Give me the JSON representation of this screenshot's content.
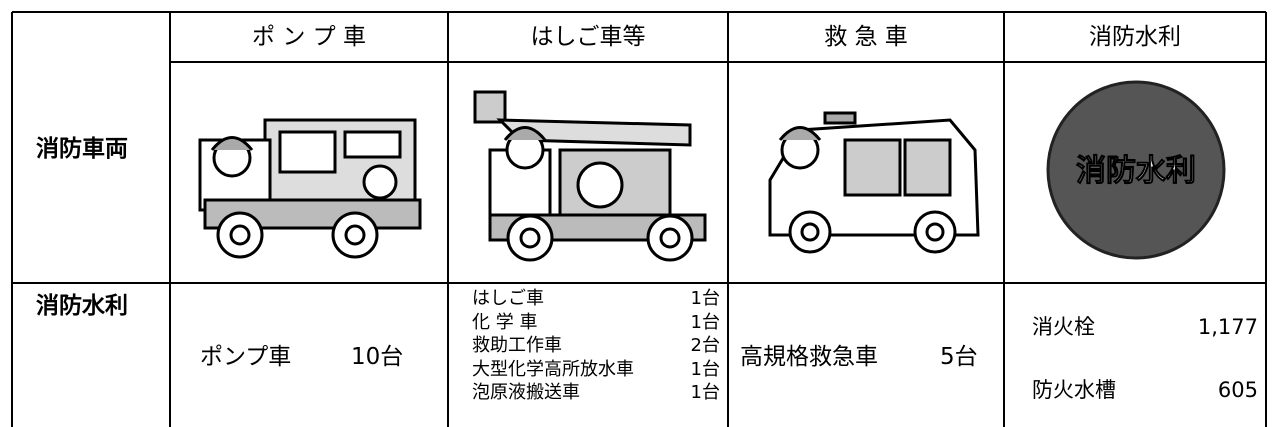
{
  "table": {
    "header": [
      "ポ ン プ 車",
      "はしご車等",
      "救 急 車",
      "消防水利"
    ],
    "row_labels": [
      "消防車両",
      "消防水利"
    ],
    "hydrant_badge": "消防水利",
    "pump": {
      "name": "ポンプ車",
      "count": "10台"
    },
    "ladder": [
      {
        "name": "はしご車",
        "count": "1台"
      },
      {
        "name": "化 学 車",
        "count": "1台"
      },
      {
        "name": "救助工作車",
        "count": "2台"
      },
      {
        "name": "大型化学高所放水車",
        "count": "1台"
      },
      {
        "name": "泡原液搬送車",
        "count": "1台"
      }
    ],
    "ambulance": {
      "name": "高規格救急車",
      "count": "5台"
    },
    "water": [
      {
        "name": "消火栓",
        "count": "1,177"
      },
      {
        "name": "防火水槽",
        "count": "605"
      }
    ]
  }
}
